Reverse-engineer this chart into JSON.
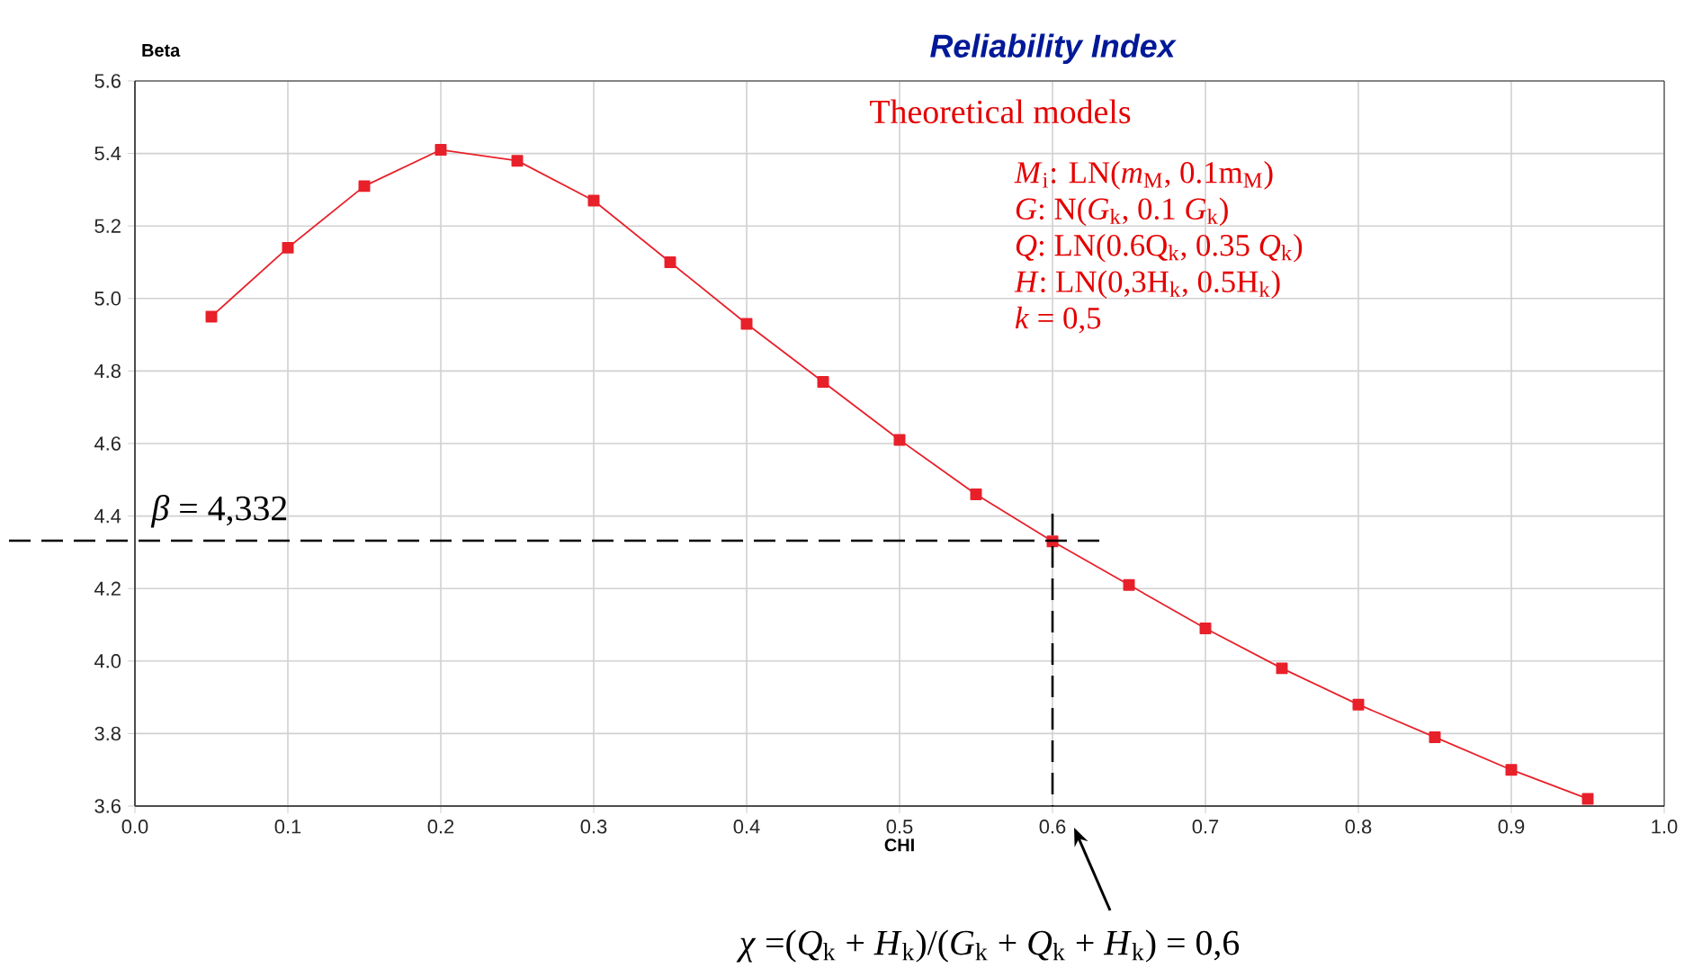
{
  "chart_data": {
    "type": "line",
    "title": "Reliability Index",
    "xlabel": "CHI",
    "ylabel": "Beta",
    "x": [
      0.05,
      0.1,
      0.15,
      0.2,
      0.25,
      0.3,
      0.35,
      0.4,
      0.45,
      0.5,
      0.55,
      0.6,
      0.65,
      0.7,
      0.75,
      0.8,
      0.85,
      0.9,
      0.95
    ],
    "series": [
      {
        "color": "#e8202a",
        "values": [
          4.95,
          5.14,
          5.31,
          5.41,
          5.38,
          5.27,
          5.1,
          4.93,
          4.77,
          4.61,
          4.46,
          4.33,
          4.21,
          4.09,
          3.98,
          3.88,
          3.79,
          3.7,
          3.62
        ]
      }
    ],
    "xlim": [
      0,
      1
    ],
    "ylim": [
      3.6,
      5.6
    ],
    "xticks": [
      {
        "value": 0,
        "label": "0.0"
      },
      0.1,
      0.2,
      0.3,
      0.4,
      0.5,
      0.6,
      0.7,
      0.8,
      0.9,
      {
        "value": 1,
        "label": "1.0"
      }
    ],
    "yticks": [
      3.6,
      3.8,
      {
        "value": 4,
        "label": "4.0"
      },
      4.2,
      4.4,
      4.6,
      4.8,
      {
        "value": 5,
        "label": "5.0"
      },
      5.2,
      5.4,
      5.6
    ],
    "grid": true,
    "marker": "square",
    "line_style": "solid",
    "annotations": [
      "Theoretical models",
      "*M*$_{i}$:  LN(*m*$_{M}$, 0.1m$_{M}$)",
      "*G*:   N(*G*$_{k}$, 0.1 *G*$_{k}$)",
      "*Q*:   LN(0.6Q$_{k}$, 0.35 *Q*$_{k}$)",
      "*H*:   LN(0,3H$_{k}$, 0.5H$_{k}$)",
      "*k* =  0,5"
    ],
    "ref_lines": [
      {
        "axis": "y",
        "value": 4.332,
        "label": "*β* = 4,332",
        "color": "#000000",
        "line_style": "dashed"
      },
      {
        "axis": "x",
        "value": 0.6,
        "label": "*χ* =(*Q*$_{k}$ + *H*$_{k}$)/(*G*$_{k}$ + *Q*$_{k}$ + *H*$_{k}$) = 0,6",
        "color": "#000000",
        "line_style": "dashed"
      }
    ]
  }
}
